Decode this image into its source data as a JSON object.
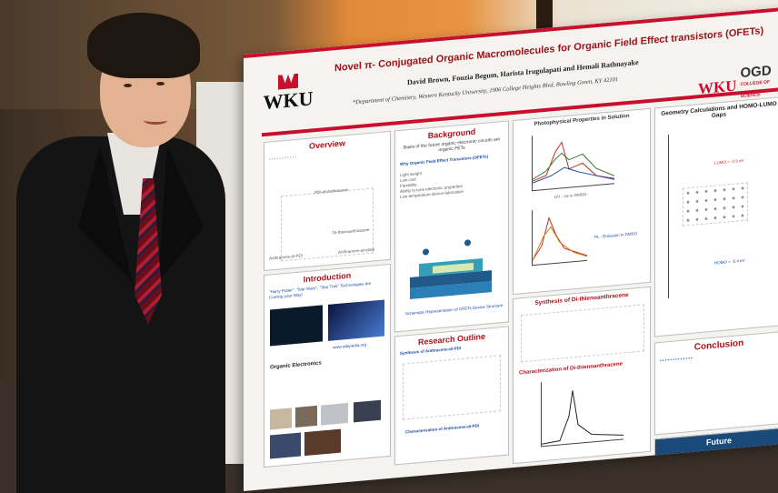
{
  "poster": {
    "logo_left": "WKU",
    "title": "Novel π- Conjugated Organic Macromolecules for Organic Field Effect transistors (OFETs)",
    "authors": "David Brown, Fouzia Begum, Harista Irugulapati and Hemali Rathnayake",
    "affiliation": "*Department of Chemistry, Western Kentucky University, 1906 College Heights Blvd, Bowling Green, KY 42101",
    "logo_right": "WKU",
    "logo_right_suffix": "OGD",
    "logo_right_sub": "COLLEGE OF SCIENCE",
    "panels": {
      "overview": {
        "heading": "Overview",
        "labels": [
          "PDI-di-Anthracene",
          "Di-thienoanthracene",
          "Anthracene-di-PDI",
          "Anthracene-acrylate"
        ]
      },
      "introduction": {
        "heading": "Introduction",
        "text": "\"Harry Potter\", \"Star Wars\", \"Star Trek\" Technologies are Coming your Way!",
        "sub": "Organic Electronics",
        "caption": "www.wikipedia.org"
      },
      "background": {
        "heading": "Background",
        "lead": "Basis of the future organic electronic circuits are organic FETs",
        "sub": "Why Organic Field Effect Transistors (OFETs)",
        "bullets": [
          "Light weight",
          "Low cost",
          "Flexibility",
          "Ability to tune electronic properties",
          "Low temperature device fabrication"
        ],
        "device_caption": "Schematic Representation of OFETs Device Structure"
      },
      "research": {
        "heading": "Research Outline",
        "sub": "Synthesis of Anthracene-di-PDI",
        "caption": "Characterization of Anthracene-di-PDI"
      },
      "photophysical": {
        "heading": "Photophysical Properties in Solution",
        "caption1": "UV - vis in DMSO",
        "caption2": "PL - Emission in DMSO"
      },
      "synthesis": {
        "heading": "Synthesis of Di-thienoanthracene",
        "sub": "Characterization of Di-thienoanthracene"
      },
      "geometry": {
        "heading": "Geometry Calculations and HOMO-LUMO Gaps",
        "lumo": "LUMO = -2.5 eV",
        "homo": "HOMO = -5.4 eV"
      },
      "conclusion": {
        "heading": "Conclusion"
      },
      "future": {
        "heading": "Future"
      }
    }
  }
}
